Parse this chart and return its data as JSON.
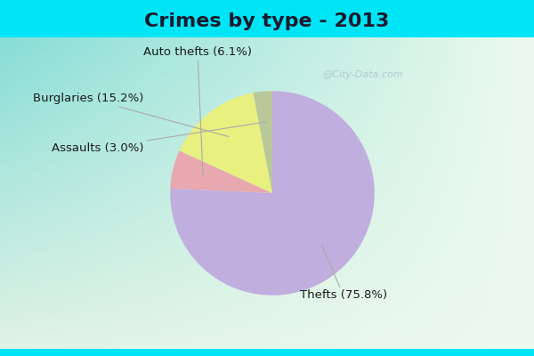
{
  "title": "Crimes by type - 2013",
  "slices": [
    {
      "label": "Thefts",
      "pct": 75.8,
      "color": "#c0aede"
    },
    {
      "label": "Auto thefts",
      "pct": 6.1,
      "color": "#e8a8b0"
    },
    {
      "label": "Burglaries",
      "pct": 15.2,
      "color": "#e8f080"
    },
    {
      "label": "Assaults",
      "pct": 3.0,
      "color": "#b8c898"
    }
  ],
  "bg_color_top": "#00e5f5",
  "bg_color_body_tl": "#8addd8",
  "bg_color_body_br": "#e8f8e8",
  "title_fontsize": 16,
  "label_fontsize": 9.5,
  "watermark": "@City-Data.com",
  "title_color": "#1a1a2e"
}
